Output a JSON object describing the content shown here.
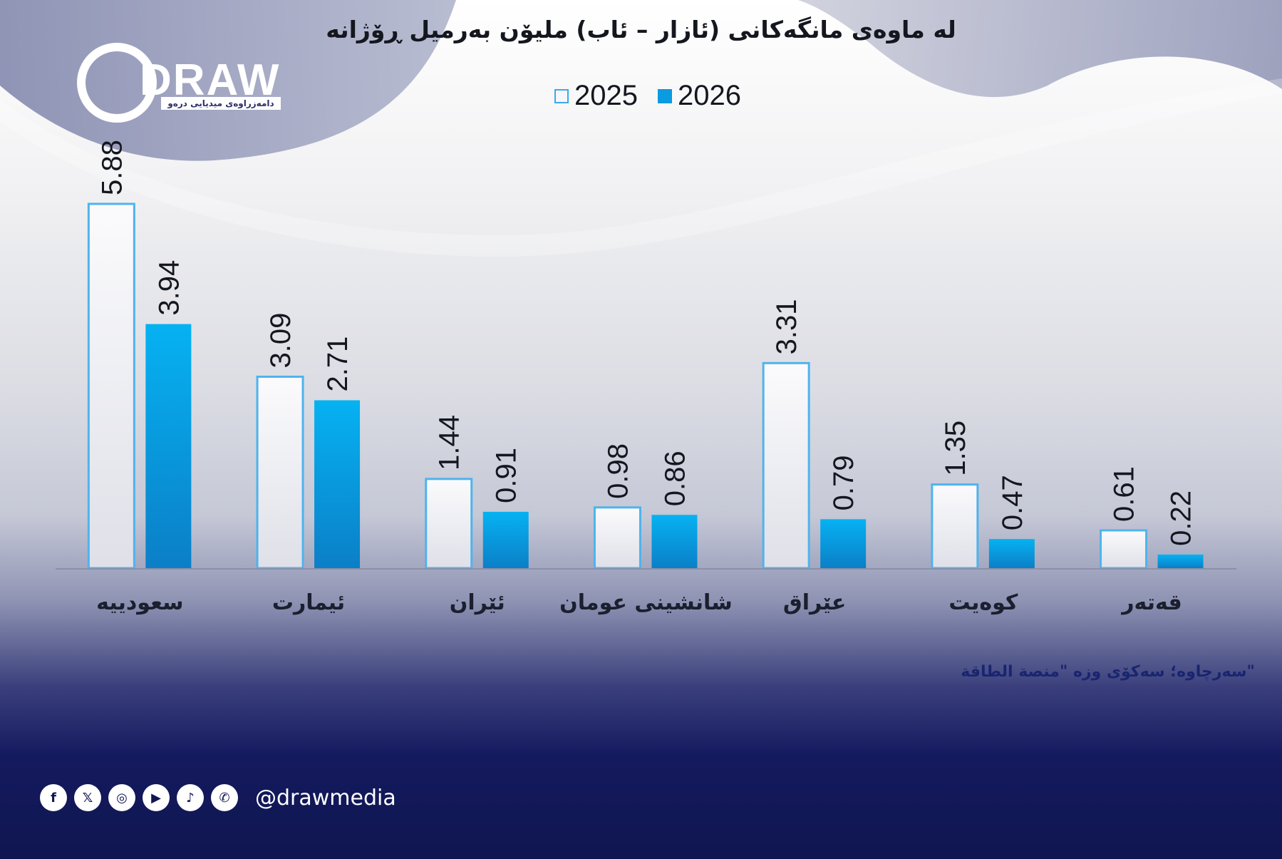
{
  "header": {
    "title": "له ماوەی مانگەکانی (ئازار – ئاب) ملیۆن بەرمیل ڕۆژانە"
  },
  "logo": {
    "text": "DRAW",
    "subtitle": "دامەزراوەی میدیایی درەو"
  },
  "legend": {
    "items": [
      {
        "label": "2025"
      },
      {
        "label": "2026"
      }
    ]
  },
  "source_text": "سەرچاوە؛ سەکۆی وزە \"منصة الطاقة\"",
  "footer": {
    "handle": "@drawmedia",
    "icons": [
      "facebook-icon",
      "x-icon",
      "instagram-icon",
      "youtube-icon",
      "tiktok-icon",
      "whatsapp-icon"
    ]
  },
  "colors": {
    "series_2025_fill": "#f6f7fb",
    "series_2025_stroke": "#3aa9e8",
    "series_2026_top": "#06b2f2",
    "series_2026_bottom": "#0b7fc7",
    "background_bottom": "#0f1650"
  },
  "chart_data": {
    "type": "bar",
    "categories": [
      "سعودییە",
      "ئیمارت",
      "ئێران",
      "شانشینی عومان",
      "عێراق",
      "کوەیت",
      "قەتەر"
    ],
    "series": [
      {
        "name": "2025",
        "values": [
          5.88,
          3.09,
          1.44,
          0.98,
          3.31,
          1.35,
          0.61
        ]
      },
      {
        "name": "2026",
        "values": [
          3.94,
          2.71,
          0.91,
          0.86,
          0.79,
          0.47,
          0.22
        ]
      }
    ],
    "value_labels": {
      "2025": [
        "5.88",
        "3.09",
        "1.44",
        "0.98",
        "3.31",
        "1.35",
        "0.61"
      ],
      "2026": [
        "3.94",
        "2.71",
        "0.91",
        "0.86",
        "0.79",
        "0.47",
        "0.22"
      ]
    },
    "ylim": [
      0,
      6
    ],
    "grid": false,
    "legend_position": "top-center"
  }
}
